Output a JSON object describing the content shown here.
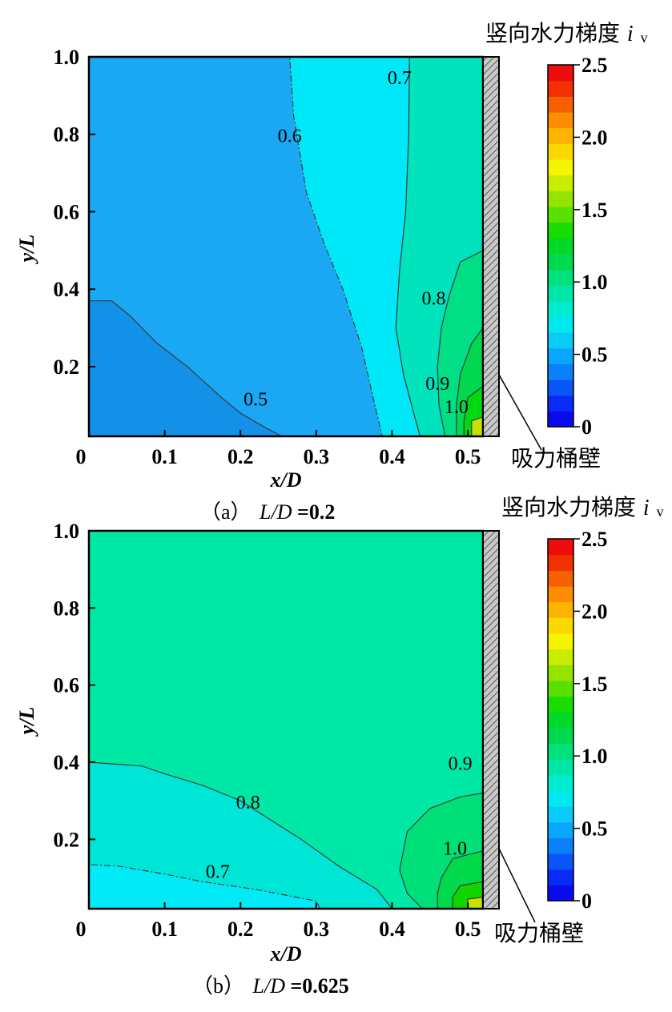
{
  "chart_data": [
    {
      "type": "heatmap",
      "subtype": "filled-contour",
      "panel_label": "（a）",
      "caption_prefix": "L/D",
      "caption_value": "=0.2",
      "xlabel": "x/D",
      "ylabel": "y/L",
      "xlim": [
        0,
        0.52
      ],
      "ylim": [
        0.02,
        1.0
      ],
      "xticks": [
        "0",
        "0.1",
        "0.2",
        "0.3",
        "0.4",
        "0.5"
      ],
      "xtick_values": [
        0,
        0.1,
        0.2,
        0.3,
        0.4,
        0.5
      ],
      "yticks": [
        "1.0",
        "0.8",
        "0.6",
        "0.4",
        "0.2"
      ],
      "ytick_values": [
        1.0,
        0.8,
        0.6,
        0.4,
        0.2
      ],
      "colorbar_title": "竖向水力梯度",
      "colorbar_symbol": "i",
      "colorbar_subscript": "v",
      "colorbar_range": [
        0,
        2.5
      ],
      "colorbar_ticks": [
        "2.5",
        "2.0",
        "1.5",
        "1.0",
        "0.5",
        "0"
      ],
      "colorbar_tick_values": [
        2.5,
        2.0,
        1.5,
        1.0,
        0.5,
        0
      ],
      "wall_label": "吸力桶壁",
      "regions": [
        {
          "level": 0.6,
          "color": "#1aa8f4",
          "poly": [
            [
              0,
              0.02
            ],
            [
              0.52,
              0.02
            ],
            [
              0.52,
              1.0
            ],
            [
              0,
              1.0
            ]
          ]
        },
        {
          "level": 0.5,
          "color": "#1391e8",
          "poly": [
            [
              0,
              0.02
            ],
            [
              0.255,
              0.02
            ],
            [
              0.235,
              0.04
            ],
            [
              0.2,
              0.08
            ],
            [
              0.175,
              0.12
            ],
            [
              0.13,
              0.2
            ],
            [
              0.09,
              0.26
            ],
            [
              0.055,
              0.33
            ],
            [
              0.03,
              0.37
            ],
            [
              0,
              0.37
            ]
          ]
        },
        {
          "level": 0.7,
          "color": "#00e8f7",
          "poly": [
            [
              0.387,
              0.02
            ],
            [
              0.52,
              0.02
            ],
            [
              0.52,
              1.0
            ],
            [
              0.265,
              1.0
            ],
            [
              0.27,
              0.85
            ],
            [
              0.287,
              0.65
            ],
            [
              0.31,
              0.52
            ],
            [
              0.335,
              0.4
            ],
            [
              0.36,
              0.25
            ],
            [
              0.375,
              0.12
            ]
          ]
        },
        {
          "level": 0.8,
          "color": "#00e3bd",
          "poly": [
            [
              0.437,
              0.02
            ],
            [
              0.52,
              0.02
            ],
            [
              0.52,
              1.0
            ],
            [
              0.423,
              1.0
            ],
            [
              0.422,
              0.8
            ],
            [
              0.418,
              0.6
            ],
            [
              0.41,
              0.45
            ],
            [
              0.405,
              0.3
            ],
            [
              0.415,
              0.18
            ],
            [
              0.43,
              0.07
            ]
          ]
        },
        {
          "level": 0.9,
          "color": "#00de86",
          "poly": [
            [
              0.47,
              0.02
            ],
            [
              0.52,
              0.02
            ],
            [
              0.52,
              0.5
            ],
            [
              0.49,
              0.47
            ],
            [
              0.475,
              0.38
            ],
            [
              0.465,
              0.3
            ],
            [
              0.46,
              0.2
            ],
            [
              0.462,
              0.1
            ]
          ]
        },
        {
          "level": 1.0,
          "color": "#00d94f",
          "poly": [
            [
              0.485,
              0.02
            ],
            [
              0.52,
              0.02
            ],
            [
              0.52,
              0.3
            ],
            [
              0.505,
              0.26
            ],
            [
              0.49,
              0.18
            ],
            [
              0.485,
              0.1
            ]
          ]
        },
        {
          "level": 1.2,
          "color": "#00d90f",
          "poly": [
            [
              0.495,
              0.02
            ],
            [
              0.52,
              0.02
            ],
            [
              0.52,
              0.15
            ],
            [
              0.5,
              0.12
            ],
            [
              0.495,
              0.06
            ]
          ]
        },
        {
          "level": 1.8,
          "color": "#c8e100",
          "poly": [
            [
              0.505,
              0.02
            ],
            [
              0.52,
              0.02
            ],
            [
              0.52,
              0.07
            ],
            [
              0.505,
              0.06
            ]
          ]
        }
      ],
      "contour_labels": [
        {
          "text": "0.5",
          "x": 0.22,
          "y": 0.1
        },
        {
          "text": "0.6",
          "x": 0.265,
          "y": 0.78
        },
        {
          "text": "0.7",
          "x": 0.41,
          "y": 0.93
        },
        {
          "text": "0.8",
          "x": 0.455,
          "y": 0.36
        },
        {
          "text": "0.9",
          "x": 0.46,
          "y": 0.14
        },
        {
          "text": "1.0",
          "x": 0.485,
          "y": 0.08
        }
      ]
    },
    {
      "type": "heatmap",
      "subtype": "filled-contour",
      "panel_label": "（b）",
      "caption_prefix": "L/D",
      "caption_value": "=0.625",
      "xlabel": "x/D",
      "ylabel": "y/L",
      "xlim": [
        0,
        0.52
      ],
      "ylim": [
        0.02,
        1.0
      ],
      "xticks": [
        "0",
        "0.1",
        "0.2",
        "0.3",
        "0.4",
        "0.5"
      ],
      "xtick_values": [
        0,
        0.1,
        0.2,
        0.3,
        0.4,
        0.5
      ],
      "yticks": [
        "1.0",
        "0.8",
        "0.6",
        "0.4",
        "0.2"
      ],
      "ytick_values": [
        1.0,
        0.8,
        0.6,
        0.4,
        0.2
      ],
      "colorbar_title": "竖向水力梯度",
      "colorbar_symbol": "i",
      "colorbar_subscript": "v",
      "colorbar_range": [
        0,
        2.5
      ],
      "colorbar_ticks": [
        "2.5",
        "2.0",
        "1.5",
        "1.0",
        "0.5",
        "0"
      ],
      "colorbar_tick_values": [
        2.5,
        2.0,
        1.5,
        1.0,
        0.5,
        0
      ],
      "wall_label": "吸力桶壁",
      "regions": [
        {
          "level": 0.85,
          "color": "#00e8a6",
          "poly": [
            [
              0,
              0.02
            ],
            [
              0.52,
              0.02
            ],
            [
              0.52,
              1.0
            ],
            [
              0,
              1.0
            ]
          ]
        },
        {
          "level": 0.75,
          "color": "#00e6d6",
          "poly": [
            [
              0,
              0.02
            ],
            [
              0.4,
              0.02
            ],
            [
              0.38,
              0.07
            ],
            [
              0.33,
              0.13
            ],
            [
              0.28,
              0.2
            ],
            [
              0.2,
              0.3
            ],
            [
              0.15,
              0.34
            ],
            [
              0.1,
              0.37
            ],
            [
              0.07,
              0.39
            ],
            [
              0,
              0.4
            ]
          ]
        },
        {
          "level": 0.65,
          "color": "#00ebf7",
          "poly": [
            [
              0,
              0.02
            ],
            [
              0.305,
              0.02
            ],
            [
              0.3,
              0.04
            ],
            [
              0.22,
              0.07
            ],
            [
              0.15,
              0.09
            ],
            [
              0.1,
              0.11
            ],
            [
              0.04,
              0.13
            ],
            [
              0,
              0.135
            ]
          ]
        },
        {
          "level": 0.95,
          "color": "#00e078",
          "poly": [
            [
              0.44,
              0.02
            ],
            [
              0.52,
              0.02
            ],
            [
              0.52,
              0.32
            ],
            [
              0.49,
              0.31
            ],
            [
              0.45,
              0.28
            ],
            [
              0.42,
              0.22
            ],
            [
              0.41,
              0.12
            ],
            [
              0.42,
              0.06
            ]
          ]
        },
        {
          "level": 1.05,
          "color": "#00d94a",
          "poly": [
            [
              0.46,
              0.02
            ],
            [
              0.52,
              0.02
            ],
            [
              0.52,
              0.17
            ],
            [
              0.48,
              0.15
            ],
            [
              0.465,
              0.1
            ],
            [
              0.46,
              0.06
            ]
          ]
        },
        {
          "level": 1.3,
          "color": "#10d500",
          "poly": [
            [
              0.48,
              0.02
            ],
            [
              0.52,
              0.02
            ],
            [
              0.52,
              0.09
            ],
            [
              0.49,
              0.08
            ],
            [
              0.48,
              0.05
            ]
          ]
        },
        {
          "level": 1.8,
          "color": "#c8e100",
          "poly": [
            [
              0.5,
              0.02
            ],
            [
              0.52,
              0.02
            ],
            [
              0.52,
              0.05
            ],
            [
              0.5,
              0.045
            ]
          ]
        }
      ],
      "contour_labels": [
        {
          "text": "0.7",
          "x": 0.17,
          "y": 0.1
        },
        {
          "text": "0.8",
          "x": 0.21,
          "y": 0.28
        },
        {
          "text": "0.9",
          "x": 0.49,
          "y": 0.38
        },
        {
          "text": "1.0",
          "x": 0.483,
          "y": 0.16
        }
      ]
    }
  ]
}
